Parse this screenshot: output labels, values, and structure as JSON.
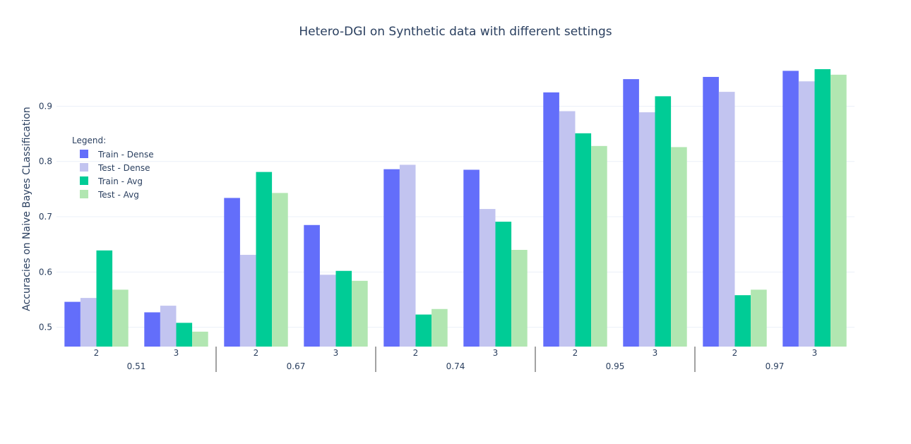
{
  "chart_data": {
    "type": "bar",
    "title": "Hetero-DGI on Synthetic data with different settings",
    "xlabel": "",
    "ylabel": "Accuracies on Naive Bayes CLassification",
    "ylim": [
      0.465,
      0.99
    ],
    "yticks": [
      0.5,
      0.6,
      0.7,
      0.8,
      0.9
    ],
    "ytick_labels": [
      "0.5",
      "0.6",
      "0.7",
      "0.8",
      "0.9"
    ],
    "groups": [
      "0.51",
      "0.67",
      "0.74",
      "0.95",
      "0.97"
    ],
    "categories": [
      "2",
      "3",
      "2",
      "3",
      "2",
      "3",
      "2",
      "3",
      "2",
      "3"
    ],
    "legend_title": "Legend:",
    "legend_position": "top-left",
    "series": [
      {
        "name": "Train - Dense",
        "color": "#636efa",
        "values": [
          0.546,
          0.527,
          0.734,
          0.685,
          0.786,
          0.785,
          0.925,
          0.949,
          0.953,
          0.964
        ]
      },
      {
        "name": "Test - Dense",
        "color": "#c2c4f0",
        "values": [
          0.553,
          0.539,
          0.631,
          0.595,
          0.794,
          0.714,
          0.891,
          0.889,
          0.926,
          0.945
        ]
      },
      {
        "name": "Train - Avg",
        "color": "#00cc96",
        "values": [
          0.639,
          0.508,
          0.781,
          0.602,
          0.523,
          0.691,
          0.851,
          0.918,
          0.558,
          0.967
        ]
      },
      {
        "name": "Test - Avg",
        "color": "#b1e6b1",
        "values": [
          0.568,
          0.492,
          0.743,
          0.584,
          0.533,
          0.64,
          0.828,
          0.826,
          0.568,
          0.957
        ]
      }
    ],
    "grid": true
  }
}
